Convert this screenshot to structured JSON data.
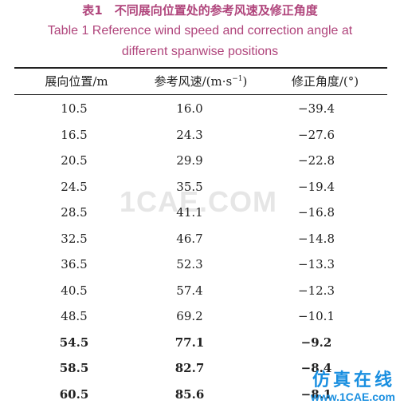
{
  "title_cn": "表1　不同展向位置处的参考风速及修正角度",
  "title_en_line1": "Table 1    Reference wind speed and correction angle at",
  "title_en_line2": "different spanwise positions",
  "headers": {
    "col1": "展向位置/m",
    "col2_pre": "参考风速/(m·s",
    "col2_sup": "−1",
    "col2_post": ")",
    "col3": "修正角度/(°)"
  },
  "rows": [
    {
      "position": "10.5",
      "speed": "16.0",
      "angle": "−39.4"
    },
    {
      "position": "16.5",
      "speed": "24.3",
      "angle": "−27.6"
    },
    {
      "position": "20.5",
      "speed": "29.9",
      "angle": "−22.8"
    },
    {
      "position": "24.5",
      "speed": "35.5",
      "angle": "−19.4"
    },
    {
      "position": "28.5",
      "speed": "41.1",
      "angle": "−16.8"
    },
    {
      "position": "32.5",
      "speed": "46.7",
      "angle": "−14.8"
    },
    {
      "position": "36.5",
      "speed": "52.3",
      "angle": "−13.3"
    },
    {
      "position": "40.5",
      "speed": "57.4",
      "angle": "−12.3"
    },
    {
      "position": "48.5",
      "speed": "69.2",
      "angle": "−10.1"
    },
    {
      "position": "54.5",
      "speed": "77.1",
      "angle": "−9.2"
    },
    {
      "position": "58.5",
      "speed": "82.7",
      "angle": "−8.4"
    },
    {
      "position": "60.5",
      "speed": "85.6",
      "angle": "−8.1"
    }
  ],
  "watermark": "1CAE.COM",
  "logo": {
    "cn": "仿真在线",
    "url": "www.1CAE.com"
  },
  "colors": {
    "title": "#b0457c",
    "logo": "#1a8fe0"
  }
}
